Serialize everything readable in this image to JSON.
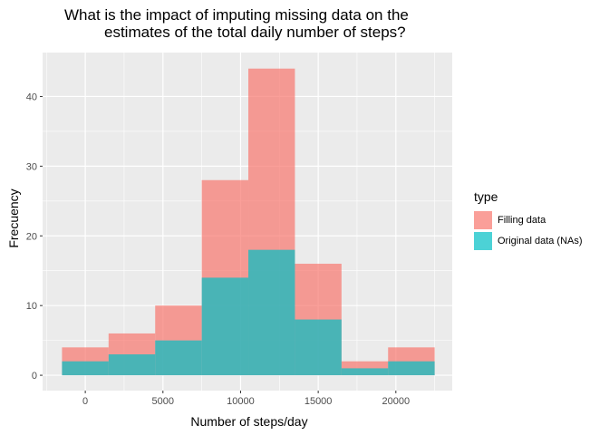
{
  "chart_data": {
    "type": "bar",
    "title_lines": [
      "What is the impact of imputing missing data on the",
      "estimates of the total daily number of steps?"
    ],
    "xlabel": "Number of steps/day",
    "ylabel": "Frecuency",
    "xlim": [
      -2750,
      23630
    ],
    "ylim": [
      -2.2,
      46.3
    ],
    "x_ticks": [
      0,
      5000,
      10000,
      15000,
      20000
    ],
    "x_tick_labels": [
      "0",
      "5000",
      "10000",
      "15000",
      "20000"
    ],
    "y_ticks": [
      0,
      10,
      20,
      30,
      40
    ],
    "y_tick_labels": [
      "0",
      "10",
      "20",
      "30",
      "40"
    ],
    "bins": [
      [
        -1500,
        1500
      ],
      [
        1500,
        4500
      ],
      [
        4500,
        7500
      ],
      [
        7500,
        10500
      ],
      [
        10500,
        13500
      ],
      [
        13500,
        16500
      ],
      [
        16500,
        19500
      ],
      [
        19500,
        22500
      ]
    ],
    "series": [
      {
        "name": "Filling data",
        "values": [
          4,
          6,
          10,
          28,
          44,
          16,
          2,
          4
        ],
        "color": "#F8766D"
      },
      {
        "name": "Original data (NAs)",
        "values": [
          2,
          3,
          5,
          14,
          18,
          8,
          1,
          2
        ],
        "color": "#00BFC4"
      }
    ],
    "legend_title": "type",
    "legend_position": "right",
    "grid": true,
    "panel_color": "#EBEBEB"
  }
}
